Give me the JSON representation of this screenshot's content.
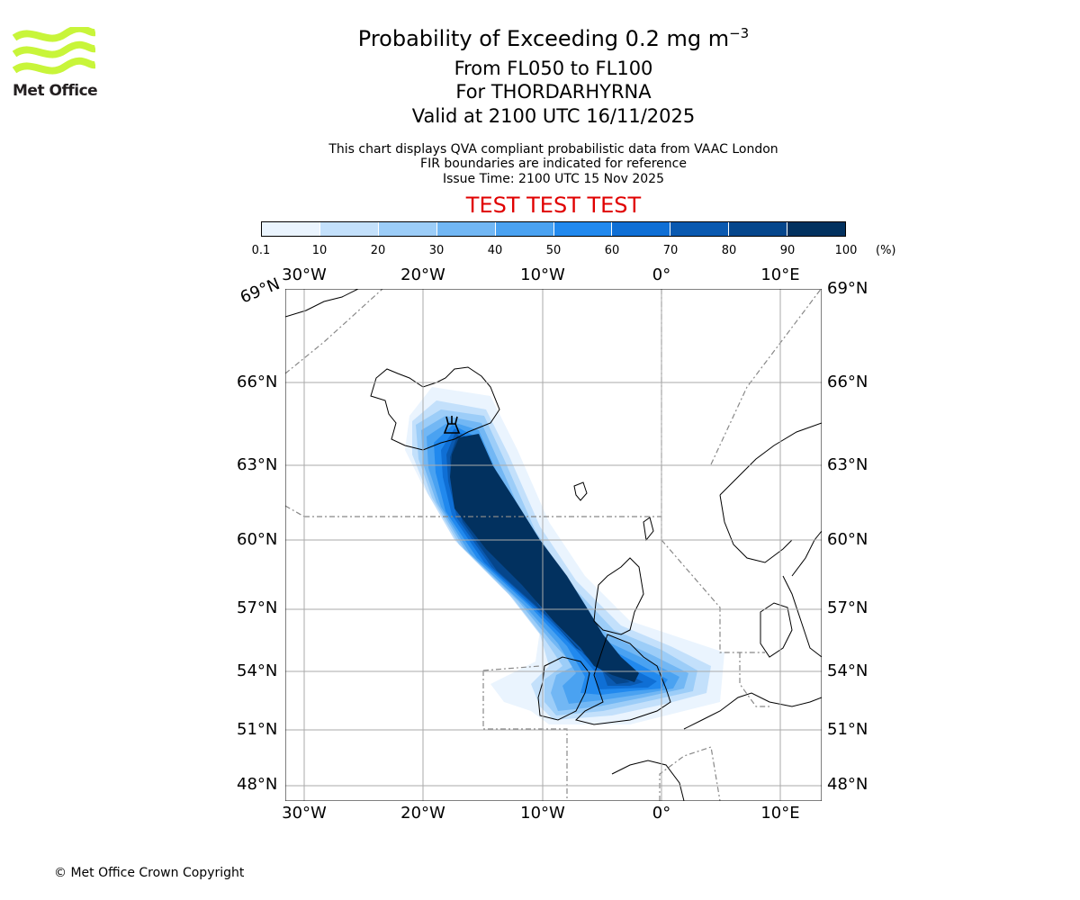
{
  "title": {
    "line1_prefix": "Probability of Exceeding 0.2 mg m",
    "line1_exp": "−3",
    "line2": "From FL050 to FL100",
    "line3": "For THORDARHYRNA",
    "line4": "Valid at 2100 UTC 16/11/2025"
  },
  "subtitle": {
    "line1": "This chart displays QVA compliant probabilistic data from VAAC London",
    "line2": "FIR boundaries are indicated for reference",
    "line3": "Issue Time: 2100 UTC 15 Nov 2025"
  },
  "test_banner": "TEST TEST TEST",
  "logo": {
    "text": "Met Office",
    "icon": "met-office-waves-logo",
    "color": "#c8f53a"
  },
  "copyright": "© Met Office Crown Copyright",
  "colorbar": {
    "ticks": [
      "0.1",
      "10",
      "20",
      "30",
      "40",
      "50",
      "60",
      "70",
      "80",
      "90",
      "100"
    ],
    "unit": "(%)",
    "colors": [
      "#eaf4fe",
      "#c3e0fb",
      "#9ccdf8",
      "#72b7f4",
      "#4aa2f1",
      "#2189ee",
      "#0f6fd5",
      "#0a59b0",
      "#05468c",
      "#02315f"
    ]
  },
  "map": {
    "lon_labels_top": [
      "30°W",
      "20°W",
      "10°W",
      "0°",
      "10°E"
    ],
    "lon_labels_bottom": [
      "30°W",
      "20°W",
      "10°W",
      "0°",
      "10°E"
    ],
    "lat_labels_left": [
      "69°N",
      "66°N",
      "63°N",
      "60°N",
      "57°N",
      "54°N",
      "51°N",
      "48°N"
    ],
    "lat_labels_right": [
      "69°N",
      "66°N",
      "63°N",
      "60°N",
      "57°N",
      "54°N",
      "51°N",
      "48°N"
    ],
    "volcano_icon": "volcano-icon",
    "coast_color": "#000000",
    "grid_color": "#aaaaaa",
    "fir_color": "#888888"
  }
}
